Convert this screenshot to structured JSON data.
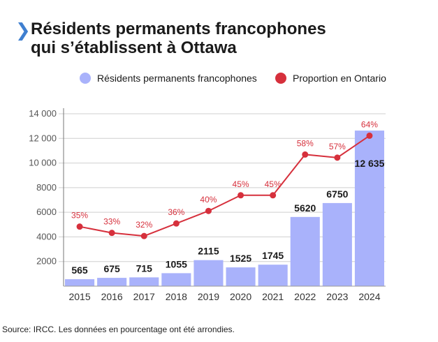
{
  "header": {
    "chevron_icon": "chevron-right-icon",
    "title_line1": "Résidents permanents francophones",
    "title_line2": "qui s’établissent à Ottawa"
  },
  "colors": {
    "bar": "#a9b2fb",
    "line": "#d6303c",
    "accent": "#3f7fd0",
    "grid": "#cfcfcf",
    "text": "#1a1a1a"
  },
  "chart_data": {
    "type": "bar",
    "categories": [
      "2015",
      "2016",
      "2017",
      "2018",
      "2019",
      "2020",
      "2021",
      "2022",
      "2023",
      "2024"
    ],
    "series": [
      {
        "name": "Résidents permanents francophones",
        "type": "bar",
        "values": [
          565,
          675,
          715,
          1055,
          2115,
          1525,
          1745,
          5620,
          6750,
          12635
        ],
        "labels": [
          "565",
          "675",
          "715",
          "1055",
          "2115",
          "1525",
          "1745",
          "5620",
          "6750",
          "12 635"
        ]
      },
      {
        "name": "Proportion en Ontario",
        "type": "line",
        "values": [
          35,
          33,
          32,
          36,
          40,
          45,
          45,
          58,
          57,
          64
        ],
        "labels": [
          "35%",
          "33%",
          "32%",
          "36%",
          "40%",
          "45%",
          "45%",
          "58%",
          "57%",
          "64%"
        ]
      }
    ],
    "ylim": [
      0,
      14000
    ],
    "yticks": [
      2000,
      4000,
      6000,
      8000,
      10000,
      12000,
      14000
    ],
    "ytick_labels": [
      "2000",
      "4000",
      "6000",
      "8000",
      "10 000",
      "12 000",
      "14 000"
    ],
    "y2lim": [
      16,
      71
    ],
    "legend_position": "top-center",
    "grid": true
  },
  "footer": {
    "source": "Source: IRCC. Les données en pourcentage ont été arrondies."
  }
}
